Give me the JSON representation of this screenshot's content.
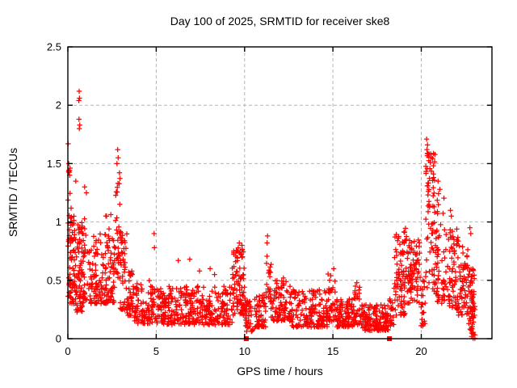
{
  "chart_data": {
    "type": "scatter",
    "title": "Day 100 of 2025, SRMTID for receiver ske8",
    "xlabel": "GPS time / hours",
    "ylabel": "SRMTID / TECUs",
    "xlim": [
      0,
      24
    ],
    "ylim": [
      0,
      2.5
    ],
    "xticks": [
      {
        "v": 0,
        "label": "0"
      },
      {
        "v": 5,
        "label": "5"
      },
      {
        "v": 10,
        "label": "10"
      },
      {
        "v": 15,
        "label": "15"
      },
      {
        "v": 20,
        "label": "20"
      }
    ],
    "yticks": [
      {
        "v": 0,
        "label": "0"
      },
      {
        "v": 0.5,
        "label": "0.5"
      },
      {
        "v": 1,
        "label": "1"
      },
      {
        "v": 1.5,
        "label": "1.5"
      },
      {
        "v": 2,
        "label": "2"
      },
      {
        "v": 2.5,
        "label": "2.5"
      }
    ],
    "grid": true,
    "legend": "none",
    "marker": "plus",
    "marker_color": "#ff0000",
    "grid_color": "#b5b5b5",
    "axis_color": "#000000",
    "series": [
      {
        "name": "srmtid-points",
        "note": "dense scatter summarized as bands [x0,x1,ylo,yhi,count,shape] plus explicit outliers",
        "bands": [
          [
            0.0,
            0.2,
            0.3,
            1.2,
            40,
            1.4
          ],
          [
            0.0,
            0.15,
            1.2,
            1.55,
            6,
            1.0
          ],
          [
            0.2,
            1.0,
            0.3,
            1.05,
            110,
            1.4
          ],
          [
            0.3,
            1.0,
            0.22,
            0.4,
            18,
            1.0
          ],
          [
            1.0,
            2.1,
            0.3,
            0.9,
            90,
            1.5
          ],
          [
            2.1,
            2.45,
            0.3,
            1.13,
            45,
            1.6
          ],
          [
            2.45,
            2.7,
            0.3,
            0.9,
            28,
            1.4
          ],
          [
            2.7,
            2.95,
            0.5,
            1.6,
            28,
            1.3
          ],
          [
            2.95,
            3.35,
            0.25,
            0.95,
            45,
            1.7
          ],
          [
            3.35,
            3.75,
            0.2,
            0.6,
            40,
            1.5
          ],
          [
            3.75,
            5.0,
            0.13,
            0.5,
            95,
            1.6
          ],
          [
            5.0,
            6.5,
            0.12,
            0.45,
            120,
            1.5
          ],
          [
            6.5,
            9.3,
            0.12,
            0.45,
            215,
            1.5
          ],
          [
            9.3,
            10.0,
            0.2,
            0.78,
            90,
            1.2
          ],
          [
            10.0,
            10.5,
            0.05,
            0.35,
            40,
            1.2
          ],
          [
            10.5,
            11.2,
            0.1,
            0.38,
            60,
            1.4
          ],
          [
            11.2,
            11.5,
            0.25,
            0.85,
            22,
            1.5
          ],
          [
            11.5,
            12.6,
            0.15,
            0.5,
            90,
            1.6
          ],
          [
            12.6,
            14.7,
            0.1,
            0.42,
            160,
            1.5
          ],
          [
            14.7,
            15.2,
            0.15,
            0.56,
            40,
            1.4
          ],
          [
            15.2,
            16.2,
            0.1,
            0.34,
            90,
            1.4
          ],
          [
            16.2,
            16.6,
            0.12,
            0.46,
            30,
            1.4
          ],
          [
            16.6,
            18.15,
            0.07,
            0.3,
            140,
            1.4
          ],
          [
            18.15,
            18.45,
            0.1,
            0.35,
            20,
            1.3
          ],
          [
            18.45,
            19.2,
            0.2,
            0.95,
            85,
            1.5
          ],
          [
            19.2,
            19.95,
            0.3,
            0.85,
            80,
            1.4
          ],
          [
            19.95,
            20.25,
            0.1,
            0.5,
            22,
            1.2
          ],
          [
            20.25,
            20.8,
            0.4,
            1.6,
            75,
            0.85
          ],
          [
            20.8,
            21.35,
            0.3,
            1.3,
            55,
            1.5
          ],
          [
            21.35,
            22.1,
            0.25,
            0.95,
            70,
            1.4
          ],
          [
            22.1,
            22.65,
            0.2,
            0.8,
            60,
            1.4
          ],
          [
            22.65,
            23.0,
            0.05,
            0.6,
            45,
            1.2
          ],
          [
            22.85,
            23.05,
            0.0,
            0.4,
            25,
            1.1
          ]
        ],
        "outliers": [
          [
            0.02,
            1.67
          ],
          [
            0.05,
            1.5
          ],
          [
            0.1,
            1.44
          ],
          [
            0.64,
            2.12
          ],
          [
            0.66,
            2.06
          ],
          [
            0.62,
            2.04
          ],
          [
            0.63,
            1.88
          ],
          [
            0.67,
            1.83
          ],
          [
            0.65,
            1.8
          ],
          [
            0.45,
            1.35
          ],
          [
            0.95,
            1.3
          ],
          [
            1.05,
            1.25
          ],
          [
            2.82,
            1.62
          ],
          [
            2.85,
            1.55
          ],
          [
            2.78,
            1.5
          ],
          [
            4.88,
            0.9
          ],
          [
            4.9,
            0.78
          ],
          [
            6.25,
            0.67
          ],
          [
            6.9,
            0.68
          ],
          [
            7.45,
            0.58
          ],
          [
            8.05,
            0.6
          ],
          [
            8.3,
            0.55
          ],
          [
            9.7,
            0.82
          ],
          [
            9.85,
            0.8
          ],
          [
            11.3,
            0.88
          ],
          [
            12.2,
            0.52
          ],
          [
            15.05,
            0.6
          ],
          [
            16.35,
            0.48
          ],
          [
            20.3,
            1.71
          ],
          [
            20.35,
            1.66
          ],
          [
            20.32,
            1.62
          ],
          [
            20.45,
            1.58
          ],
          [
            20.95,
            1.35
          ],
          [
            21.05,
            1.28
          ],
          [
            21.65,
            1.1
          ],
          [
            21.7,
            1.05
          ],
          [
            22.75,
            0.95
          ],
          [
            22.8,
            0.9
          ]
        ]
      },
      {
        "name": "zero-flag-squares",
        "marker": "filled-square",
        "points": [
          [
            10.1,
            0
          ],
          [
            18.2,
            0
          ]
        ]
      }
    ]
  }
}
